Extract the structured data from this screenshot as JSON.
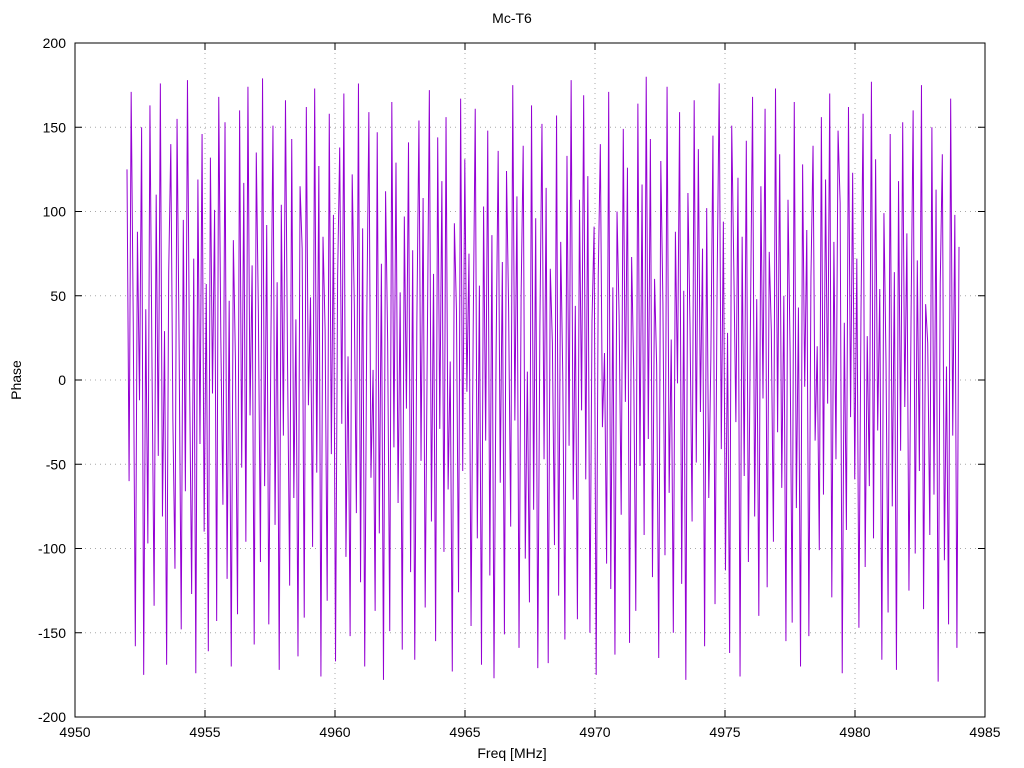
{
  "title": "Mc-T6",
  "xlabel": "Freq [MHz]",
  "ylabel": "Phase",
  "colors": {
    "line": "#9400D3",
    "grid": "#a8a8a8",
    "axis": "#000000",
    "background": "#ffffff",
    "text": "#000000"
  },
  "chart_data": {
    "type": "line",
    "title": "Mc-T6",
    "xlabel": "Freq [MHz]",
    "ylabel": "Phase",
    "xlim": [
      4950,
      4985
    ],
    "ylim": [
      -200,
      200
    ],
    "x_ticks": [
      4950,
      4955,
      4960,
      4965,
      4970,
      4975,
      4980,
      4985
    ],
    "y_ticks": [
      -200,
      -150,
      -100,
      -50,
      0,
      50,
      100,
      150,
      200
    ],
    "grid": true,
    "grid_style": "dotted",
    "legend": "none",
    "series": [
      {
        "name": "phase",
        "x_start": 4952,
        "x_end": 4984,
        "values": [
          125,
          -60,
          171,
          34,
          -158,
          88,
          -12,
          150,
          -175,
          42,
          -97,
          163,
          7,
          -134,
          110,
          -45,
          176,
          -81,
          29,
          -169,
          64,
          140,
          -23,
          -112,
          155,
          18,
          -148,
          95,
          -66,
          178,
          3,
          -127,
          72,
          -174,
          119,
          -38,
          146,
          -90,
          57,
          -161,
          132,
          -8,
          101,
          -143,
          168,
          25,
          -74,
          153,
          -118,
          47,
          -170,
          83,
          12,
          -139,
          160,
          -52,
          117,
          -96,
          174,
          -21,
          68,
          -157,
          135,
          40,
          -108,
          179,
          -63,
          92,
          -145,
          21,
          151,
          -86,
          58,
          -172,
          104,
          -33,
          166,
          9,
          -122,
          143,
          -70,
          36,
          -164,
          115,
          78,
          -141,
          162,
          -15,
          49,
          -99,
          173,
          -55,
          127,
          -176,
          85,
          30,
          -131,
          158,
          -44,
          98,
          -167,
          61,
          138,
          -26,
          170,
          -105,
          14,
          -152,
          122,
          45,
          -79,
          176,
          -120,
          90,
          -170,
          37,
          159,
          -58,
          6,
          -137,
          147,
          -91,
          69,
          -178,
          112,
          23,
          -149,
          165,
          -40,
          129,
          -73,
          52,
          -160,
          97,
          -17,
          141,
          -114,
          77,
          -166,
          33,
          154,
          -48,
          108,
          -135,
          19,
          172,
          -84,
          63,
          -155,
          144,
          -29,
          118,
          -102,
          156,
          -65,
          11,
          -173,
          93,
          41,
          -126,
          167,
          -54,
          131,
          -7,
          75,
          -146,
          27,
          161,
          -94,
          56,
          -169,
          103,
          -36,
          148,
          -116,
          86,
          -177,
          15,
          136,
          -61,
          70,
          -151,
          124,
          43,
          -87,
          175,
          -24,
          109,
          -159,
          50,
          139,
          -106,
          5,
          -132,
          163,
          -77,
          96,
          -171,
          31,
          152,
          -47,
          114,
          -168,
          66,
          22,
          -98,
          157,
          -128,
          82,
          1,
          -154,
          133,
          -39,
          178,
          -71,
          44,
          -142,
          107,
          -18,
          169,
          -59,
          121,
          -150,
          35,
          91,
          -175,
          62,
          140,
          -28,
          16,
          -109,
          171,
          -124,
          55,
          -163,
          100,
          38,
          -80,
          149,
          -13,
          126,
          -156,
          73,
          6,
          -137,
          164,
          -51,
          116,
          -92,
          180,
          -35,
          143,
          -117,
          60,
          9,
          -165,
          130,
          46,
          -104,
          174,
          -67,
          24,
          -150,
          88,
          -2,
          159,
          -121,
          53,
          -178,
          111,
          32,
          -84,
          166,
          -49,
          137,
          -19,
          78,
          -158,
          102,
          -70,
          13,
          145,
          -133,
          58,
          176,
          -41,
          94,
          -113,
          28,
          -162,
          151,
          67,
          -25,
          120,
          -176,
          85,
          -57,
          142,
          -108,
          37,
          168,
          -81,
          48,
          -140,
          115,
          -11,
          161,
          -123,
          76,
          29,
          -96,
          173,
          -31,
          134,
          -64,
          50,
          -155,
          107,
          17,
          -144,
          165,
          -76,
          43,
          -170,
          128,
          -4,
          89,
          -152,
          61,
          139,
          -36,
          20,
          -101,
          156,
          -68,
          119,
          -14,
          170,
          -129,
          82,
          -47,
          148,
          105,
          -174,
          34,
          -89,
          162,
          -22,
          123,
          -59,
          72,
          -147,
          40,
          158,
          -111,
          26,
          -63,
          177,
          -94,
          131,
          -30,
          54,
          -166,
          99,
          10,
          -138,
          146,
          -75,
          64,
          -172,
          118,
          -42,
          153,
          -16,
          87,
          -125,
          36,
          160,
          -103,
          71,
          -54,
          175,
          -136,
          45,
          22,
          -92,
          150,
          -68,
          113,
          -179,
          57,
          134,
          -107,
          8,
          -145,
          167,
          -33,
          98,
          -159,
          79
        ]
      }
    ]
  }
}
